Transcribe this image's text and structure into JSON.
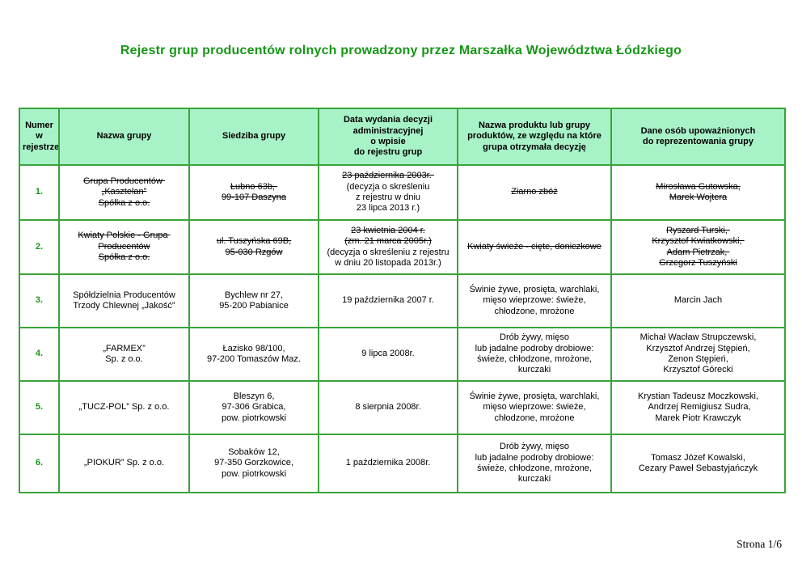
{
  "title": "Rejestr grup producentów rolnych prowadzony przez Marszałka Województwa Łódzkiego",
  "footer": {
    "page_label": "Strona 1/6"
  },
  "colors": {
    "accent_green": "#169616",
    "border_green": "#3aa43a",
    "header_bg": "#a8f2c8"
  },
  "table": {
    "headers": [
      {
        "id": "register-number",
        "lines": [
          "Numer w",
          "rejestrze"
        ]
      },
      {
        "id": "group-name",
        "lines": [
          "Nazwa grupy"
        ]
      },
      {
        "id": "group-seat",
        "lines": [
          "Siedziba grupy"
        ]
      },
      {
        "id": "decision-date",
        "lines": [
          "Data wydania decyzji",
          "administracyjnej",
          "o wpisie",
          "do rejestru grup"
        ]
      },
      {
        "id": "product-name",
        "lines": [
          "Nazwa produktu lub grupy",
          "produktów, ze względu na które",
          "grupa otrzymała decyzję"
        ]
      },
      {
        "id": "authorized-persons",
        "lines": [
          "Dane osób upoważnionych",
          "do reprezentowania grupy"
        ]
      }
    ],
    "rows": [
      {
        "number": "1.",
        "cells": {
          "name": [
            {
              "text": "Grupa Producentów ",
              "struck": true
            },
            {
              "text": "„Kasztelan”",
              "struck": true
            },
            {
              "text": "Spółka z o.o.",
              "struck": true
            }
          ],
          "address": [
            {
              "text": "Łubno 63b, ",
              "struck": true
            },
            {
              "text": "99-107 Daszyna",
              "struck": true
            }
          ],
          "date": [
            {
              "text": "23 października 2003r. ",
              "struck": true
            },
            {
              "text": "(decyzja o skreśleniu",
              "struck": false
            },
            {
              "text": "z rejestru w dniu",
              "struck": false
            },
            {
              "text": "23 lipca 2013 r.)",
              "struck": false
            }
          ],
          "product": [
            {
              "text": "Ziarno zbóż",
              "struck": true
            }
          ],
          "persons": [
            {
              "text": "Mirosława Gutowska,",
              "struck": true
            },
            {
              "text": "Marek Wojtera",
              "struck": true
            }
          ]
        }
      },
      {
        "number": "2.",
        "cells": {
          "name": [
            {
              "text": "Kwiaty Polskie - Grupa ",
              "struck": true
            },
            {
              "text": "Producentów",
              "struck": true
            },
            {
              "text": "Spółka z o.o.",
              "struck": true
            }
          ],
          "address": [
            {
              "text": "ul. Tuszyńska 69B,",
              "struck": true
            },
            {
              "text": "95-030 Rzgów",
              "struck": true
            }
          ],
          "date": [
            {
              "text": "23 kwietnia 2004 r.",
              "struck": true
            },
            {
              "text": "(zm. 21 marca 2005r.)",
              "struck": true
            },
            {
              "text": "(decyzja o skreśleniu z rejestru",
              "struck": false
            },
            {
              "text": "w dniu 20 listopada 2013r.)",
              "struck": false
            }
          ],
          "product": [
            {
              "text": "Kwiaty świeże - cięte, doniczkowe",
              "struck": true
            }
          ],
          "persons": [
            {
              "text": "Ryszard Turski, ",
              "struck": true
            },
            {
              "text": "Krzysztof Kwiatkowski, ",
              "struck": true
            },
            {
              "text": "Adam Pietrzak, ",
              "struck": true
            },
            {
              "text": "Grzegorz Tuszyński",
              "struck": true
            }
          ]
        }
      },
      {
        "number": "3.",
        "cells": {
          "name": [
            {
              "text": "Spółdzielnia Producentów",
              "struck": false
            },
            {
              "text": "Trzody Chlewnej „Jakość”",
              "struck": false
            }
          ],
          "address": [
            {
              "text": "Bychlew nr 27,",
              "struck": false
            },
            {
              "text": "95-200 Pabianice",
              "struck": false
            }
          ],
          "date": [
            {
              "text": "19 października 2007 r.",
              "struck": false
            }
          ],
          "product": [
            {
              "text": "Świnie żywe, prosięta, warchlaki,",
              "struck": false
            },
            {
              "text": "mięso wieprzowe: świeże,",
              "struck": false
            },
            {
              "text": "chłodzone, mrożone",
              "struck": false
            }
          ],
          "persons": [
            {
              "text": "Marcin Jach",
              "struck": false
            }
          ]
        }
      },
      {
        "number": "4.",
        "cells": {
          "name": [
            {
              "text": "„FARMEX”",
              "struck": false
            },
            {
              "text": "Sp. z o.o.",
              "struck": false
            }
          ],
          "address": [
            {
              "text": "Łazisko 98/100,",
              "struck": false
            },
            {
              "text": "97-200 Tomaszów Maz.",
              "struck": false
            }
          ],
          "date": [
            {
              "text": "9 lipca 2008r.",
              "struck": false
            }
          ],
          "product": [
            {
              "text": "Drób żywy, mięso",
              "struck": false
            },
            {
              "text": "lub jadalne podroby drobiowe:",
              "struck": false
            },
            {
              "text": "świeże, chłodzone, mrożone,",
              "struck": false
            },
            {
              "text": "kurczaki",
              "struck": false
            }
          ],
          "persons": [
            {
              "text": "Michał Wacław Strupczewski,",
              "struck": false
            },
            {
              "text": "Krzysztof Andrzej Stępień,",
              "struck": false
            },
            {
              "text": "Zenon Stępień,",
              "struck": false
            },
            {
              "text": "Krzysztof Górecki",
              "struck": false
            }
          ]
        }
      },
      {
        "number": "5.",
        "cells": {
          "name": [
            {
              "text": "„TUCZ-POL” Sp. z o.o.",
              "struck": false
            }
          ],
          "address": [
            {
              "text": "Bleszyn 6,",
              "struck": false
            },
            {
              "text": "97-306 Grabica,",
              "struck": false
            },
            {
              "text": "pow. piotrkowski",
              "struck": false
            }
          ],
          "date": [
            {
              "text": "8 sierpnia 2008r.",
              "struck": false
            }
          ],
          "product": [
            {
              "text": "Świnie żywe, prosięta, warchlaki,",
              "struck": false
            },
            {
              "text": "mięso wieprzowe: świeże,",
              "struck": false
            },
            {
              "text": "chłodzone, mrożone",
              "struck": false
            }
          ],
          "persons": [
            {
              "text": "Krystian Tadeusz Moczkowski,",
              "struck": false
            },
            {
              "text": " Andrzej Remigiusz Sudra,",
              "struck": false
            },
            {
              "text": "Marek Piotr Krawczyk",
              "struck": false
            }
          ]
        }
      },
      {
        "number": "6.",
        "cells": {
          "name": [
            {
              "text": "„PIOKUR” Sp. z o.o.",
              "struck": false
            }
          ],
          "address": [
            {
              "text": "Sobaków 12,",
              "struck": false
            },
            {
              "text": "97-350 Gorzkowice,",
              "struck": false
            },
            {
              "text": "pow. piotrkowski",
              "struck": false
            }
          ],
          "date": [
            {
              "text": "1 października 2008r.",
              "struck": false
            }
          ],
          "product": [
            {
              "text": "Drób żywy, mięso",
              "struck": false
            },
            {
              "text": "lub jadalne podroby drobiowe:",
              "struck": false
            },
            {
              "text": "świeże, chłodzone, mrożone,",
              "struck": false
            },
            {
              "text": "kurczaki",
              "struck": false
            }
          ],
          "persons": [
            {
              "text": "Tomasz Józef Kowalski,",
              "struck": false
            },
            {
              "text": "Cezary Paweł Sebastyjańczyk",
              "struck": false
            }
          ]
        }
      }
    ]
  }
}
